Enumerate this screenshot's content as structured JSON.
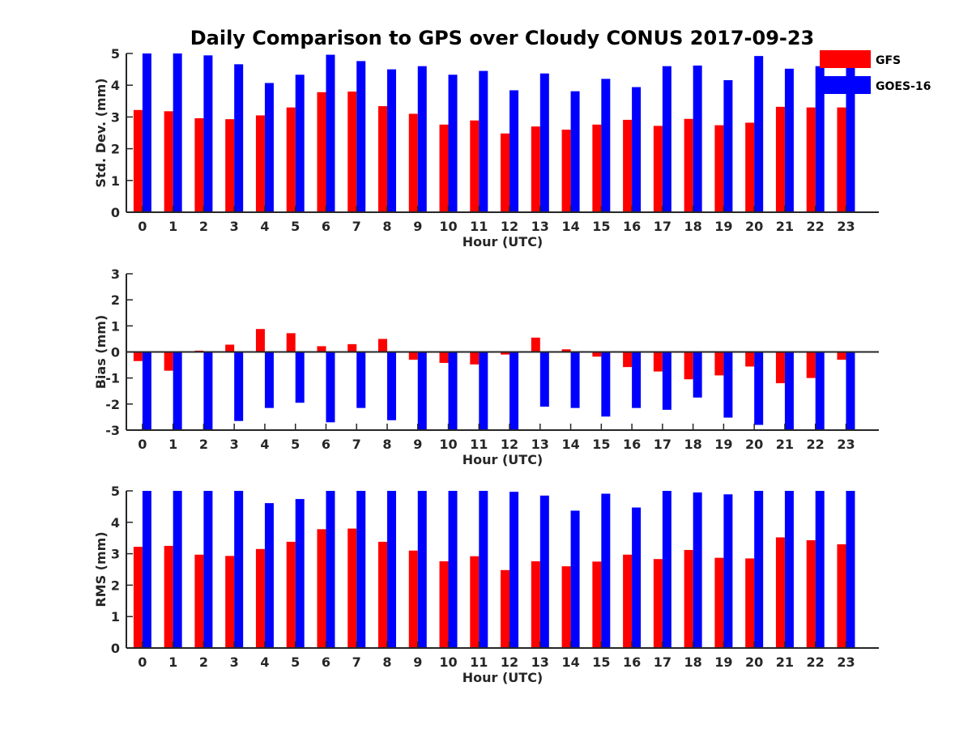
{
  "chart_data": {
    "title": "Daily Comparison to GPS over Cloudy CONUS 2017-09-23",
    "colors": {
      "GFS": "#ff0000",
      "GOES-16": "#0000ff",
      "axis": "#262626"
    },
    "legend": {
      "placement": "top-right",
      "entries": [
        "GFS",
        "GOES-16"
      ]
    },
    "subplots": [
      {
        "type": "bar",
        "xlabel": "Hour (UTC)",
        "ylabel": "Std. Dev. (mm)",
        "ylim": [
          0,
          5
        ],
        "yticks": [
          0,
          1,
          2,
          3,
          4,
          5
        ],
        "categories": [
          "0",
          "1",
          "2",
          "3",
          "4",
          "5",
          "6",
          "7",
          "8",
          "9",
          "10",
          "11",
          "12",
          "13",
          "14",
          "15",
          "16",
          "17",
          "18",
          "19",
          "20",
          "21",
          "22",
          "23"
        ],
        "series": [
          {
            "name": "GFS",
            "values": [
              3.22,
              3.18,
              2.96,
              2.93,
              3.05,
              3.3,
              3.78,
              3.8,
              3.34,
              3.1,
              2.76,
              2.89,
              2.48,
              2.7,
              2.6,
              2.76,
              2.91,
              2.72,
              2.94,
              2.74,
              2.82,
              3.32,
              3.3,
              3.3
            ]
          },
          {
            "name": "GOES-16",
            "values": [
              5.0,
              5.0,
              4.94,
              4.66,
              4.07,
              4.33,
              4.96,
              4.76,
              4.5,
              4.6,
              4.33,
              4.45,
              3.84,
              4.37,
              3.81,
              4.2,
              3.94,
              4.6,
              4.62,
              4.16,
              4.92,
              4.52,
              4.6,
              4.6
            ]
          }
        ]
      },
      {
        "type": "bar",
        "xlabel": "Hour (UTC)",
        "ylabel": "Bias (mm)",
        "ylim": [
          -3,
          3
        ],
        "yticks": [
          -3,
          -2,
          -1,
          0,
          1,
          2,
          3
        ],
        "categories": [
          "0",
          "1",
          "2",
          "3",
          "4",
          "5",
          "6",
          "7",
          "8",
          "9",
          "10",
          "11",
          "12",
          "13",
          "14",
          "15",
          "16",
          "17",
          "18",
          "19",
          "20",
          "21",
          "22",
          "23"
        ],
        "series": [
          {
            "name": "GFS",
            "values": [
              -0.35,
              -0.72,
              0.05,
              0.28,
              0.88,
              0.72,
              0.22,
              0.3,
              0.5,
              -0.3,
              -0.42,
              -0.48,
              -0.1,
              0.55,
              0.1,
              -0.18,
              -0.58,
              -0.75,
              -1.05,
              -0.9,
              -0.56,
              -1.2,
              -1.0,
              -0.3
            ]
          },
          {
            "name": "GOES-16",
            "values": [
              -3.0,
              -3.0,
              -3.0,
              -2.65,
              -2.15,
              -1.95,
              -2.7,
              -2.15,
              -2.62,
              -3.0,
              -3.0,
              -3.0,
              -3.0,
              -2.1,
              -2.15,
              -2.48,
              -2.15,
              -2.22,
              -1.75,
              -2.52,
              -2.8,
              -3.0,
              -3.0,
              -3.0
            ]
          }
        ]
      },
      {
        "type": "bar",
        "xlabel": "Hour (UTC)",
        "ylabel": "RMS (mm)",
        "ylim": [
          0,
          5
        ],
        "yticks": [
          0,
          1,
          2,
          3,
          4,
          5
        ],
        "categories": [
          "0",
          "1",
          "2",
          "3",
          "4",
          "5",
          "6",
          "7",
          "8",
          "9",
          "10",
          "11",
          "12",
          "13",
          "14",
          "15",
          "16",
          "17",
          "18",
          "19",
          "20",
          "21",
          "22",
          "23"
        ],
        "series": [
          {
            "name": "GFS",
            "values": [
              3.22,
              3.25,
              2.97,
              2.93,
              3.15,
              3.38,
              3.78,
              3.8,
              3.38,
              3.1,
              2.76,
              2.92,
              2.48,
              2.76,
              2.6,
              2.75,
              2.97,
              2.83,
              3.12,
              2.87,
              2.85,
              3.52,
              3.43,
              3.3
            ]
          },
          {
            "name": "GOES-16",
            "values": [
              5.0,
              5.0,
              5.0,
              5.0,
              4.61,
              4.74,
              5.0,
              5.0,
              5.0,
              5.0,
              5.0,
              5.0,
              4.97,
              4.85,
              4.37,
              4.91,
              4.47,
              5.0,
              4.95,
              4.89,
              5.0,
              5.0,
              5.0,
              5.0
            ]
          }
        ]
      }
    ]
  }
}
